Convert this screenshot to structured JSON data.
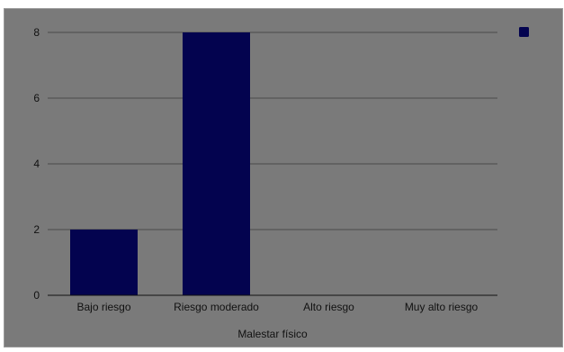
{
  "chart_data": {
    "type": "bar",
    "categories": [
      "Bajo riesgo",
      "Riesgo moderado",
      "Alto riesgo",
      "Muy alto riesgo"
    ],
    "values": [
      2,
      8,
      0,
      0
    ],
    "xlabel": "Malestar físico",
    "ylabel": "",
    "ylim": [
      0,
      8
    ],
    "yticks": [
      "0",
      "2",
      "4",
      "6",
      "8"
    ],
    "grid": true,
    "legend": {
      "placement": "top-right",
      "entries": [
        {
          "name": "",
          "color": "#03034f"
        }
      ]
    },
    "colors": {
      "bar": "#03034f",
      "background": "#7a7a7a",
      "gridline": "#4a4a4a"
    }
  }
}
